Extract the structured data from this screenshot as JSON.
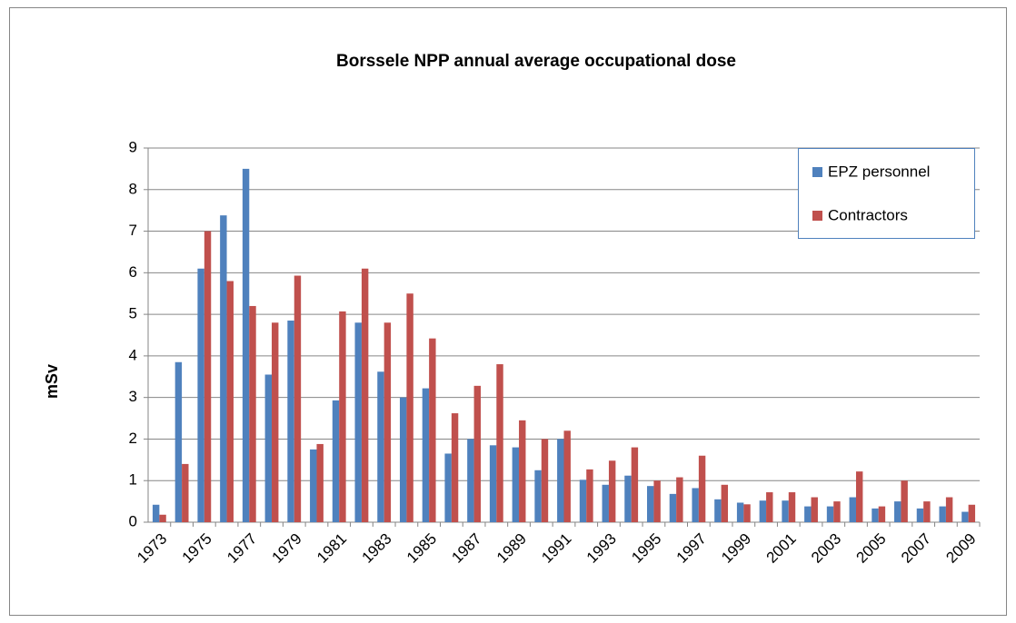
{
  "chart_data": {
    "type": "bar",
    "title": "Borssele NPP  annual average occupational dose",
    "y_label": "mSv",
    "categories": [
      "1973",
      null,
      "1975",
      null,
      "1977",
      null,
      "1979",
      null,
      "1981",
      null,
      "1983",
      null,
      "1985",
      null,
      "1987",
      null,
      "1989",
      null,
      "1991",
      null,
      "1993",
      null,
      "1995",
      null,
      "1997",
      null,
      "1999",
      null,
      "2001",
      null,
      "2003",
      null,
      "2005",
      null,
      "2007",
      null,
      "2009"
    ],
    "series": [
      {
        "name": "EPZ personnel",
        "color": "#4f81bd",
        "values": [
          0.42,
          3.85,
          6.1,
          7.38,
          8.5,
          3.55,
          4.85,
          1.75,
          2.93,
          4.8,
          3.62,
          3.0,
          3.22,
          1.65,
          2.0,
          1.85,
          1.8,
          1.25,
          2.0,
          1.02,
          0.9,
          1.12,
          0.87,
          0.68,
          0.82,
          0.55,
          0.47,
          0.52,
          0.52,
          0.38,
          0.38,
          0.6,
          0.33,
          0.5,
          0.33,
          0.38,
          0.25
        ]
      },
      {
        "name": "Contractors",
        "color": "#c0504d",
        "values": [
          0.18,
          1.4,
          7.0,
          5.8,
          5.2,
          4.8,
          5.93,
          1.88,
          5.07,
          6.1,
          4.8,
          5.5,
          4.42,
          2.62,
          3.28,
          3.8,
          2.45,
          2.0,
          2.2,
          1.27,
          1.48,
          1.8,
          1.0,
          1.08,
          1.6,
          0.9,
          0.43,
          0.72,
          0.72,
          0.6,
          0.5,
          1.22,
          0.38,
          1.0,
          0.5,
          0.6,
          0.42
        ]
      }
    ],
    "ylim": [
      0,
      9
    ],
    "yticks": [
      0,
      1,
      2,
      3,
      4,
      5,
      6,
      7,
      8,
      9
    ],
    "grid": true,
    "legend": "upper right"
  }
}
